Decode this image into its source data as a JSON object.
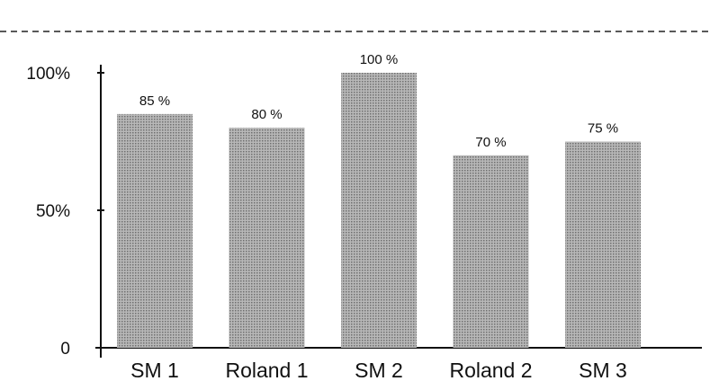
{
  "chart_data": {
    "type": "bar",
    "categories": [
      "SM 1",
      "Roland 1",
      "SM 2",
      "Roland 2",
      "SM 3"
    ],
    "values": [
      85,
      80,
      100,
      70,
      75
    ],
    "data_labels": [
      "85 %",
      "80 %",
      "100 %",
      "70 %",
      "75 %"
    ],
    "yticks": [
      {
        "value": 0,
        "label": "0"
      },
      {
        "value": 50,
        "label": "50%"
      },
      {
        "value": 100,
        "label": "100%"
      }
    ],
    "ylim": [
      0,
      100
    ],
    "title": "",
    "xlabel": "",
    "ylabel": "",
    "grid": false,
    "top_rule": "dashed",
    "bar_fill": "dotted-gray",
    "colors": {
      "bar": "#a9a9a9",
      "bar_dot": "#6f6f6f",
      "axis": "#111111"
    }
  }
}
